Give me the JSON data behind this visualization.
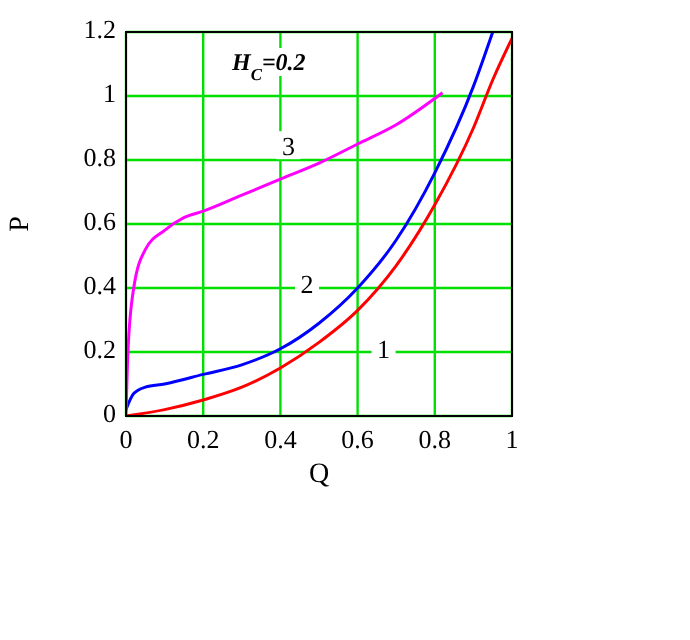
{
  "chart_data": {
    "type": "line",
    "xlabel": "Q",
    "ylabel": "P",
    "annotations": [
      "H$_{C}$=0.2"
    ],
    "xlim": [
      0,
      1
    ],
    "ylim": [
      0,
      1.2
    ],
    "xticks": [
      0,
      0.2,
      0.4,
      0.6,
      0.8,
      1
    ],
    "yticks": [
      0,
      0.2,
      0.4,
      0.6,
      0.8,
      1,
      1.2
    ],
    "grid": true,
    "marker": "none",
    "line_style": "solid",
    "series": [
      {
        "name": "1",
        "color": "#ff0000",
        "x": [
          0,
          0.1,
          0.2,
          0.3,
          0.4,
          0.5,
          0.6,
          0.7,
          0.8,
          0.9,
          0.95,
          1
        ],
        "values": [
          0,
          0.02,
          0.05,
          0.09,
          0.15,
          0.23,
          0.33,
          0.47,
          0.66,
          0.9,
          1.05,
          1.18
        ]
      },
      {
        "name": "2",
        "color": "#0000ff",
        "x": [
          0,
          0.02,
          0.05,
          0.1,
          0.2,
          0.3,
          0.4,
          0.5,
          0.6,
          0.7,
          0.8,
          0.9,
          0.95
        ],
        "values": [
          0.02,
          0.07,
          0.09,
          0.1,
          0.13,
          0.16,
          0.21,
          0.29,
          0.4,
          0.55,
          0.76,
          1.03,
          1.2
        ]
      },
      {
        "name": "3",
        "color": "#ff00ff",
        "x": [
          0,
          0.005,
          0.02,
          0.05,
          0.1,
          0.15,
          0.2,
          0.3,
          0.4,
          0.5,
          0.6,
          0.7,
          0.82
        ],
        "values": [
          0,
          0.2,
          0.4,
          0.52,
          0.58,
          0.62,
          0.64,
          0.69,
          0.74,
          0.79,
          0.85,
          0.91,
          1.01
        ]
      }
    ]
  }
}
